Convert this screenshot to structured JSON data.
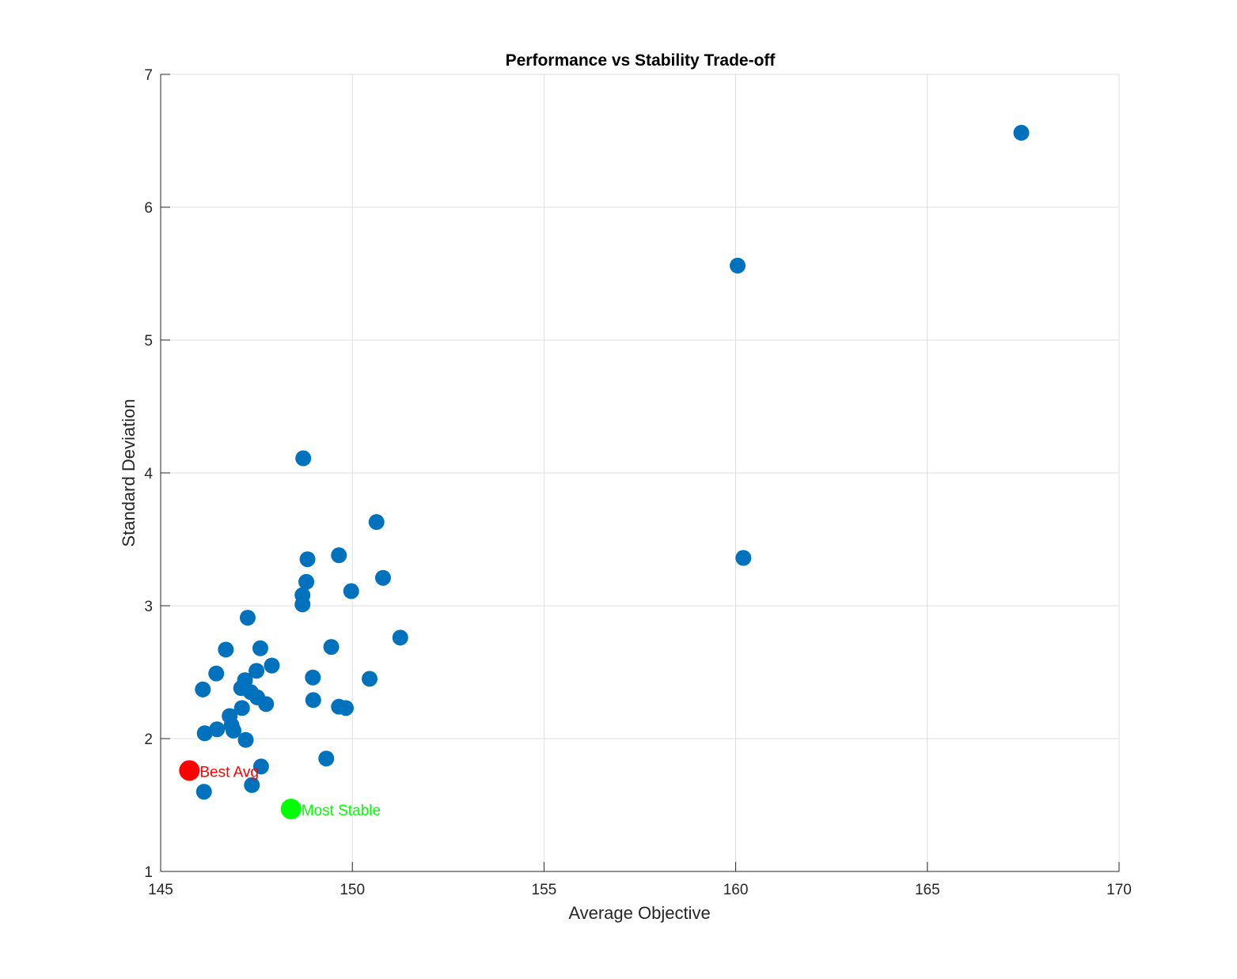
{
  "chart_data": {
    "type": "scatter",
    "title": "Performance vs Stability Trade-off",
    "xlabel": "Average Objective",
    "ylabel": "Standard Deviation",
    "xlim": [
      145,
      170
    ],
    "ylim": [
      1,
      7
    ],
    "xticks": [
      145,
      150,
      155,
      160,
      165,
      170
    ],
    "yticks": [
      1,
      2,
      3,
      4,
      5,
      6,
      7
    ],
    "grid": true,
    "colors": {
      "points": "#0072BD",
      "best_avg": "#FF0000",
      "most_stable": "#00FF00",
      "axis": "#262626",
      "grid": "#DFDFDF"
    },
    "series": [
      {
        "points": [
          [
            167.45,
            6.56
          ],
          [
            160.05,
            5.56
          ],
          [
            160.2,
            3.36
          ],
          [
            148.72,
            4.11
          ],
          [
            150.63,
            3.63
          ],
          [
            149.65,
            3.38
          ],
          [
            148.83,
            3.35
          ],
          [
            150.8,
            3.21
          ],
          [
            148.8,
            3.18
          ],
          [
            149.97,
            3.11
          ],
          [
            148.7,
            3.08
          ],
          [
            148.7,
            3.01
          ],
          [
            147.27,
            2.91
          ],
          [
            151.25,
            2.76
          ],
          [
            149.45,
            2.69
          ],
          [
            147.6,
            2.68
          ],
          [
            146.7,
            2.67
          ],
          [
            147.9,
            2.55
          ],
          [
            147.5,
            2.51
          ],
          [
            146.45,
            2.49
          ],
          [
            148.97,
            2.46
          ],
          [
            150.45,
            2.45
          ],
          [
            147.2,
            2.44
          ],
          [
            147.1,
            2.38
          ],
          [
            147.35,
            2.35
          ],
          [
            146.1,
            2.37
          ],
          [
            147.52,
            2.31
          ],
          [
            148.98,
            2.29
          ],
          [
            147.75,
            2.26
          ],
          [
            149.65,
            2.24
          ],
          [
            149.83,
            2.23
          ],
          [
            147.12,
            2.23
          ],
          [
            146.8,
            2.17
          ],
          [
            146.85,
            2.1
          ],
          [
            146.47,
            2.07
          ],
          [
            146.9,
            2.06
          ],
          [
            146.15,
            2.04
          ],
          [
            147.22,
            1.99
          ],
          [
            149.32,
            1.85
          ],
          [
            147.62,
            1.79
          ],
          [
            147.38,
            1.65
          ],
          [
            146.13,
            1.6
          ]
        ]
      }
    ],
    "highlights": [
      {
        "label": "Best Avg",
        "x": 145.75,
        "y": 1.76,
        "color": "#FF0000"
      },
      {
        "label": "Most Stable",
        "x": 148.4,
        "y": 1.47,
        "color": "#00FF00"
      }
    ]
  }
}
